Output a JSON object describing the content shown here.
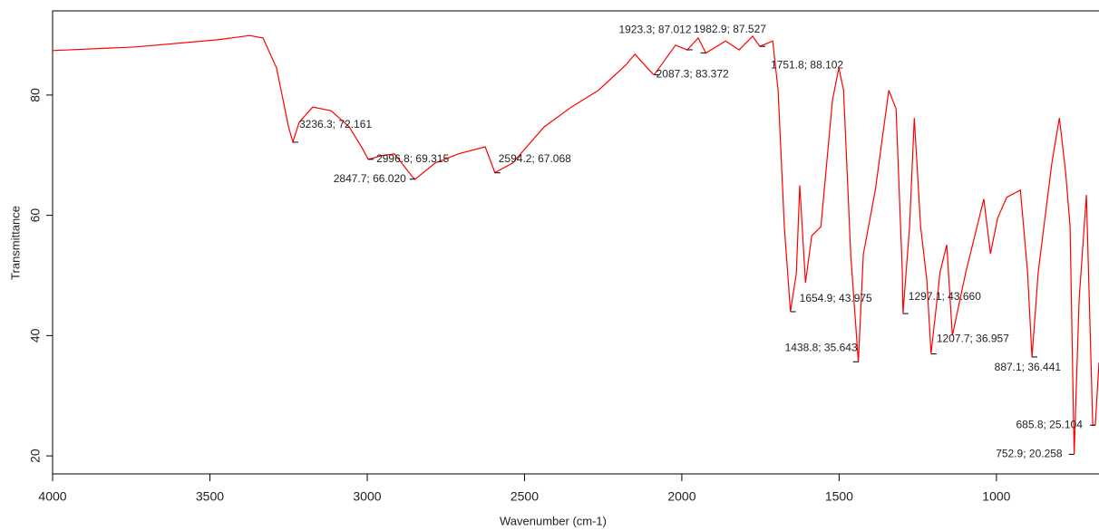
{
  "chart_data": {
    "type": "line",
    "x_label": "Wavenumber (cm-1)",
    "y_label": "Transmittance",
    "xlim": [
      4000,
      674
    ],
    "ylim": [
      17,
      94
    ],
    "x_reversed": true,
    "xticks": [
      4000,
      3500,
      3000,
      2500,
      2000,
      1500,
      1000
    ],
    "yticks": [
      20,
      40,
      60,
      80
    ],
    "color": "#ff0000",
    "x": [
      4000,
      3735,
      3475,
      3374,
      3331,
      3288,
      3250,
      3236.3,
      3216,
      3173,
      3115,
      3057,
      3014,
      2996.8,
      2956,
      2913,
      2856,
      2847.7,
      2784,
      2711,
      2625,
      2594.2,
      2538,
      2438,
      2351,
      2265,
      2178,
      2149,
      2092,
      2087.3,
      2020,
      1982.9,
      1948,
      1923.3,
      1861,
      1818,
      1775,
      1751.8,
      1711,
      1694,
      1674,
      1654.9,
      1636,
      1625,
      1607,
      1587,
      1558,
      1521,
      1501,
      1486,
      1463,
      1438.8,
      1423,
      1385,
      1342,
      1319,
      1299,
      1297.1,
      1276,
      1261,
      1241,
      1221,
      1207.7,
      1179,
      1158,
      1140,
      1097,
      1040,
      1019,
      996,
      967,
      924,
      901,
      887.1,
      867,
      824,
      800,
      780,
      766,
      752.9,
      737,
      714,
      694,
      685.8,
      674
    ],
    "values": [
      87.4,
      88.0,
      89.2,
      89.9,
      89.5,
      84.5,
      74.7,
      72.2,
      75.5,
      78.0,
      77.4,
      74.7,
      71.0,
      69.3,
      69.9,
      70.2,
      66.4,
      66.0,
      68.7,
      70.2,
      71.4,
      67.1,
      68.7,
      74.7,
      78.0,
      80.8,
      85.0,
      86.8,
      83.5,
      83.4,
      88.3,
      87.5,
      89.5,
      87.0,
      89.0,
      87.5,
      89.8,
      88.1,
      89.0,
      80.8,
      58.1,
      44.0,
      50.3,
      65.0,
      48.8,
      56.6,
      58.1,
      79.2,
      84.5,
      80.8,
      53.5,
      35.6,
      53.5,
      64.2,
      80.8,
      77.7,
      50.6,
      43.7,
      58.1,
      76.2,
      58.1,
      49.1,
      37.0,
      50.6,
      55.1,
      40.0,
      50.6,
      62.7,
      53.6,
      59.6,
      63.0,
      64.2,
      50.6,
      36.4,
      50.6,
      68.7,
      76.2,
      67.2,
      58.1,
      20.3,
      46.0,
      63.4,
      25.1,
      25.1,
      35.5
    ],
    "annotations": [
      {
        "text": "3236.3; 72.161",
        "x": 3236.3,
        "y": 72.161
      },
      {
        "text": "2996.8; 69.315",
        "x": 2996.8,
        "y": 69.315
      },
      {
        "text": "2847.7; 66.020",
        "x": 2847.7,
        "y": 66.02
      },
      {
        "text": "2594.2; 67.068",
        "x": 2594.2,
        "y": 67.068
      },
      {
        "text": "1923.3; 87.012",
        "x": 1923.3,
        "y": 87.012
      },
      {
        "text": "1982.9; 87.527",
        "x": 1982.9,
        "y": 87.527
      },
      {
        "text": "2087.3; 83.372",
        "x": 2087.3,
        "y": 83.372
      },
      {
        "text": "1751.8; 88.102",
        "x": 1751.8,
        "y": 88.102
      },
      {
        "text": "1654.9; 43.975",
        "x": 1654.9,
        "y": 43.975
      },
      {
        "text": "1297.1; 43.660",
        "x": 1297.1,
        "y": 43.66
      },
      {
        "text": "1438.8; 35.643",
        "x": 1438.8,
        "y": 35.643
      },
      {
        "text": "1207.7; 36.957",
        "x": 1207.7,
        "y": 36.957
      },
      {
        "text": "887.1; 36.441",
        "x": 887.1,
        "y": 36.441
      },
      {
        "text": "685.8; 25.104",
        "x": 685.8,
        "y": 25.104
      },
      {
        "text": "752.9; 20.258",
        "x": 752.9,
        "y": 20.258
      }
    ]
  }
}
